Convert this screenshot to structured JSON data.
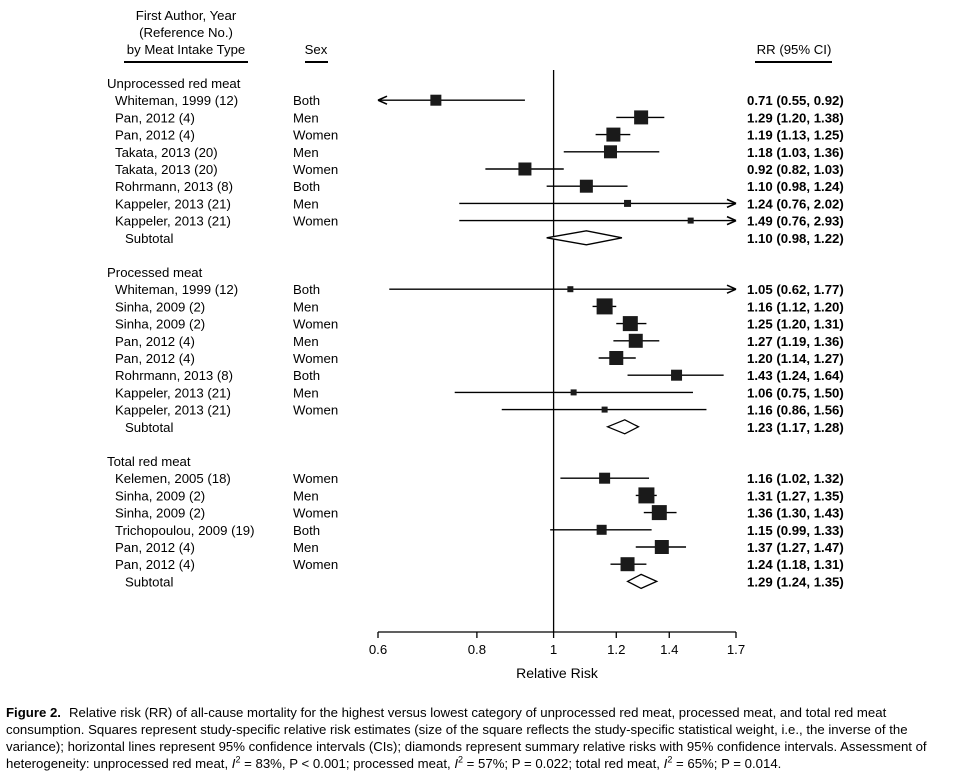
{
  "chart_data": {
    "type": "forest",
    "header": {
      "study_line1": "First Author, Year",
      "study_line2": "(Reference No.)",
      "study_line3": "by Meat Intake Type",
      "sex": "Sex",
      "rr": "RR (95% CI)"
    },
    "xlabel": "Relative Risk",
    "x_scale": "log",
    "xlim": [
      0.6,
      1.7
    ],
    "ticks": [
      "0.6",
      "0.8",
      "1",
      "1.2",
      "1.4",
      "1.7"
    ],
    "reference_line": 1,
    "groups": [
      {
        "name": "Unprocessed red meat",
        "studies": [
          {
            "study": "Whiteman, 1999 (12)",
            "sex": "Both",
            "rr": 0.71,
            "lo": 0.55,
            "hi": 0.92,
            "weight": 0.7,
            "label": "0.71 (0.55, 0.92)"
          },
          {
            "study": "Pan, 2012 (4)",
            "sex": "Men",
            "rr": 1.29,
            "lo": 1.2,
            "hi": 1.38,
            "weight": 1.0,
            "label": "1.29 (1.20, 1.38)"
          },
          {
            "study": "Pan, 2012 (4)",
            "sex": "Women",
            "rr": 1.19,
            "lo": 1.13,
            "hi": 1.25,
            "weight": 1.0,
            "label": "1.19 (1.13, 1.25)"
          },
          {
            "study": "Takata, 2013 (20)",
            "sex": "Men",
            "rr": 1.18,
            "lo": 1.03,
            "hi": 1.36,
            "weight": 0.9,
            "label": "1.18 (1.03, 1.36)"
          },
          {
            "study": "Takata, 2013 (20)",
            "sex": "Women",
            "rr": 0.92,
            "lo": 0.82,
            "hi": 1.03,
            "weight": 0.9,
            "label": "0.92 (0.82, 1.03)"
          },
          {
            "study": "Rohrmann, 2013 (8)",
            "sex": "Both",
            "rr": 1.1,
            "lo": 0.98,
            "hi": 1.24,
            "weight": 0.9,
            "label": "1.10 (0.98, 1.24)"
          },
          {
            "study": "Kappeler, 2013 (21)",
            "sex": "Men",
            "rr": 1.24,
            "lo": 0.76,
            "hi": 2.02,
            "weight": 0.3,
            "label": "1.24 (0.76, 2.02)"
          },
          {
            "study": "Kappeler, 2013 (21)",
            "sex": "Women",
            "rr": 1.49,
            "lo": 0.76,
            "hi": 2.93,
            "weight": 0.2,
            "label": "1.49 (0.76, 2.93)"
          }
        ],
        "subtotal": {
          "label_text": "Subtotal",
          "rr": 1.1,
          "lo": 0.98,
          "hi": 1.22,
          "label": "1.10 (0.98, 1.22)"
        }
      },
      {
        "name": "Processed meat",
        "studies": [
          {
            "study": "Whiteman, 1999 (12)",
            "sex": "Both",
            "rr": 1.05,
            "lo": 0.62,
            "hi": 1.77,
            "weight": 0.2,
            "label": "1.05 (0.62, 1.77)"
          },
          {
            "study": "Sinha, 2009 (2)",
            "sex": "Men",
            "rr": 1.16,
            "lo": 1.12,
            "hi": 1.2,
            "weight": 1.2,
            "label": "1.16 (1.12, 1.20)"
          },
          {
            "study": "Sinha, 2009 (2)",
            "sex": "Women",
            "rr": 1.25,
            "lo": 1.2,
            "hi": 1.31,
            "weight": 1.1,
            "label": "1.25 (1.20, 1.31)"
          },
          {
            "study": "Pan, 2012 (4)",
            "sex": "Men",
            "rr": 1.27,
            "lo": 1.19,
            "hi": 1.36,
            "weight": 1.0,
            "label": "1.27 (1.19, 1.36)"
          },
          {
            "study": "Pan, 2012 (4)",
            "sex": "Women",
            "rr": 1.2,
            "lo": 1.14,
            "hi": 1.27,
            "weight": 1.0,
            "label": "1.20 (1.14, 1.27)"
          },
          {
            "study": "Rohrmann, 2013 (8)",
            "sex": "Both",
            "rr": 1.43,
            "lo": 1.24,
            "hi": 1.64,
            "weight": 0.7,
            "label": "1.43 (1.24, 1.64)"
          },
          {
            "study": "Kappeler, 2013 (21)",
            "sex": "Men",
            "rr": 1.06,
            "lo": 0.75,
            "hi": 1.5,
            "weight": 0.2,
            "label": "1.06 (0.75, 1.50)"
          },
          {
            "study": "Kappeler, 2013 (21)",
            "sex": "Women",
            "rr": 1.16,
            "lo": 0.86,
            "hi": 1.56,
            "weight": 0.2,
            "label": "1.16 (0.86, 1.56)"
          }
        ],
        "subtotal": {
          "label_text": "Subtotal",
          "rr": 1.23,
          "lo": 1.17,
          "hi": 1.28,
          "label": "1.23 (1.17, 1.28)"
        }
      },
      {
        "name": "Total red meat",
        "studies": [
          {
            "study": "Kelemen, 2005 (18)",
            "sex": "Women",
            "rr": 1.16,
            "lo": 1.02,
            "hi": 1.32,
            "weight": 0.7,
            "label": "1.16 (1.02, 1.32)"
          },
          {
            "study": "Sinha, 2009 (2)",
            "sex": "Men",
            "rr": 1.31,
            "lo": 1.27,
            "hi": 1.35,
            "weight": 1.2,
            "label": "1.31 (1.27, 1.35)"
          },
          {
            "study": "Sinha, 2009 (2)",
            "sex": "Women",
            "rr": 1.36,
            "lo": 1.3,
            "hi": 1.43,
            "weight": 1.1,
            "label": "1.36 (1.30, 1.43)"
          },
          {
            "study": "Trichopoulou, 2009 (19)",
            "sex": "Both",
            "rr": 1.15,
            "lo": 0.99,
            "hi": 1.33,
            "weight": 0.6,
            "label": "1.15 (0.99, 1.33)"
          },
          {
            "study": "Pan, 2012 (4)",
            "sex": "Men",
            "rr": 1.37,
            "lo": 1.27,
            "hi": 1.47,
            "weight": 1.0,
            "label": "1.37 (1.27, 1.47)"
          },
          {
            "study": "Pan, 2012 (4)",
            "sex": "Women",
            "rr": 1.24,
            "lo": 1.18,
            "hi": 1.31,
            "weight": 1.0,
            "label": "1.24 (1.18, 1.31)"
          }
        ],
        "subtotal": {
          "label_text": "Subtotal",
          "rr": 1.29,
          "lo": 1.24,
          "hi": 1.35,
          "label": "1.29 (1.24, 1.35)"
        }
      }
    ]
  },
  "caption": {
    "figure_label": "Figure 2.",
    "part1": "Relative risk (RR) of all-cause mortality for the highest versus lowest category of unprocessed red meat, processed meat, and total red meat consumption. Squares represent study-specific relative risk estimates (size of the square reflects the study-specific statistical weight, i.e., the inverse of the variance); horizontal lines represent 95% confidence intervals (CIs); diamonds represent summary relative risks with 95% confidence intervals. Assessment of heterogeneity: unprocessed red meat, ",
    "i_symbol": "I",
    "sup": "2",
    "part2": " = 83%, P < 0.001; processed meat, ",
    "part3": " = 57%; P = 0.022; total red meat, ",
    "part4": " = 65%; P = 0.014."
  }
}
